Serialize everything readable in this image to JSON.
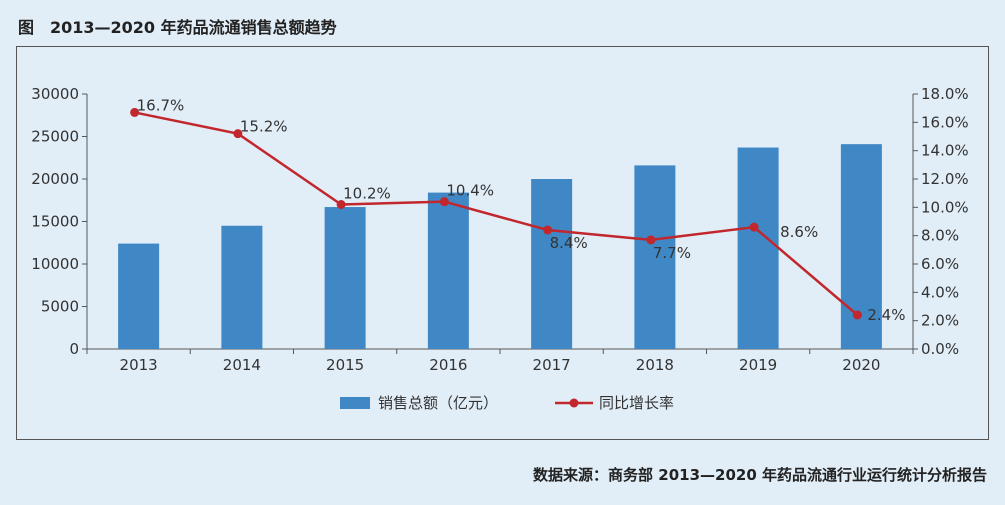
{
  "figure": {
    "title": "图　2013—2020 年药品流通销售总额趋势",
    "source": "数据来源：商务部 2013—2020 年药品流通行业运行统计分析报告"
  },
  "colors": {
    "bar": "#3f88c5",
    "line": "#c1272d"
  },
  "chart_data": {
    "type": "bar",
    "categories": [
      "2013",
      "2014",
      "2015",
      "2016",
      "2017",
      "2018",
      "2019",
      "2020"
    ],
    "series": [
      {
        "name": "销售总额（亿元）",
        "type": "bar",
        "axis": "left",
        "values": [
          12400,
          14500,
          16700,
          18400,
          20000,
          21600,
          23700,
          24100
        ]
      },
      {
        "name": "同比增长率",
        "type": "line",
        "axis": "right",
        "values": [
          16.7,
          15.2,
          10.2,
          10.4,
          8.4,
          7.7,
          8.6,
          2.4
        ],
        "labels": [
          "16.7%",
          "15.2%",
          "10.2%",
          "10.4%",
          "8.4%",
          "7.7%",
          "8.6%",
          "2.4%"
        ]
      }
    ],
    "y_left": {
      "ylim": [
        0,
        30000
      ],
      "ticks": [
        "0",
        "5000",
        "10000",
        "15000",
        "20000",
        "25000",
        "30000"
      ]
    },
    "y_right": {
      "ylim": [
        0,
        18
      ],
      "ticks": [
        "0.0%",
        "2.0%",
        "4.0%",
        "6.0%",
        "8.0%",
        "10.0%",
        "12.0%",
        "14.0%",
        "16.0%",
        "18.0%"
      ]
    },
    "grid": false,
    "legend_position": "bottom-center"
  }
}
